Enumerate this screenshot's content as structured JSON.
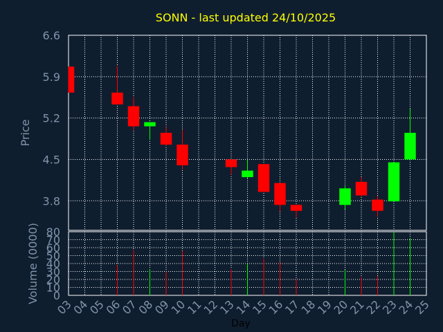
{
  "chart_data": {
    "type": "candlestick",
    "title": "SONN - last updated 24/10/2025",
    "xlabel": "Day",
    "price_panel": {
      "ylabel": "Price",
      "ylim": [
        3.3,
        6.6
      ],
      "yticks": [
        "6.6",
        "5.9",
        "5.2",
        "4.5",
        "3.8"
      ],
      "grid": true
    },
    "volume_panel": {
      "ylabel": "Volume (0000)",
      "ylim": [
        0,
        80
      ],
      "yticks": [
        "80",
        "70",
        "60",
        "50",
        "40",
        "30",
        "20",
        "10",
        "0"
      ],
      "grid": true
    },
    "x_ticks": [
      "03",
      "04",
      "05",
      "06",
      "07",
      "08",
      "09",
      "10",
      "11",
      "12",
      "13",
      "14",
      "15",
      "16",
      "17",
      "18",
      "19",
      "20",
      "21",
      "22",
      "23",
      "24",
      "25"
    ],
    "x_range": [
      3,
      25
    ],
    "up_color": "#00ff00",
    "down_color": "#ff0000",
    "candles": [
      {
        "day": 3,
        "open": 6.07,
        "high": 6.07,
        "low": 5.63,
        "close": 5.63,
        "volume": 0
      },
      {
        "day": 6,
        "open": 5.63,
        "high": 6.08,
        "low": 5.43,
        "close": 5.43,
        "volume": 38
      },
      {
        "day": 7,
        "open": 5.4,
        "high": 5.55,
        "low": 5.0,
        "close": 5.06,
        "volume": 57
      },
      {
        "day": 8,
        "open": 5.06,
        "high": 5.13,
        "low": 4.83,
        "close": 5.13,
        "volume": 33
      },
      {
        "day": 9,
        "open": 4.95,
        "high": 5.05,
        "low": 4.73,
        "close": 4.75,
        "volume": 30
      },
      {
        "day": 10,
        "open": 4.75,
        "high": 5.0,
        "low": 4.33,
        "close": 4.4,
        "volume": 56
      },
      {
        "day": 13,
        "open": 4.5,
        "high": 4.5,
        "low": 4.24,
        "close": 4.37,
        "volume": 33
      },
      {
        "day": 14,
        "open": 4.2,
        "high": 4.49,
        "low": 4.18,
        "close": 4.31,
        "volume": 40
      },
      {
        "day": 15,
        "open": 4.42,
        "high": 4.42,
        "low": 3.95,
        "close": 3.95,
        "volume": 46
      },
      {
        "day": 16,
        "open": 4.1,
        "high": 4.1,
        "low": 3.62,
        "close": 3.73,
        "volume": 42
      },
      {
        "day": 17,
        "open": 3.73,
        "high": 3.73,
        "low": 3.52,
        "close": 3.63,
        "volume": 20
      },
      {
        "day": 20,
        "open": 3.73,
        "high": 4.05,
        "low": 3.65,
        "close": 4.01,
        "volume": 32
      },
      {
        "day": 21,
        "open": 4.12,
        "high": 4.2,
        "low": 3.87,
        "close": 3.89,
        "volume": 23
      },
      {
        "day": 22,
        "open": 3.82,
        "high": 3.88,
        "low": 3.53,
        "close": 3.63,
        "volume": 24
      },
      {
        "day": 23,
        "open": 3.79,
        "high": 4.45,
        "low": 3.79,
        "close": 4.45,
        "volume": 80
      },
      {
        "day": 24,
        "open": 4.5,
        "high": 5.36,
        "low": 4.48,
        "close": 4.95,
        "volume": 72
      }
    ]
  }
}
